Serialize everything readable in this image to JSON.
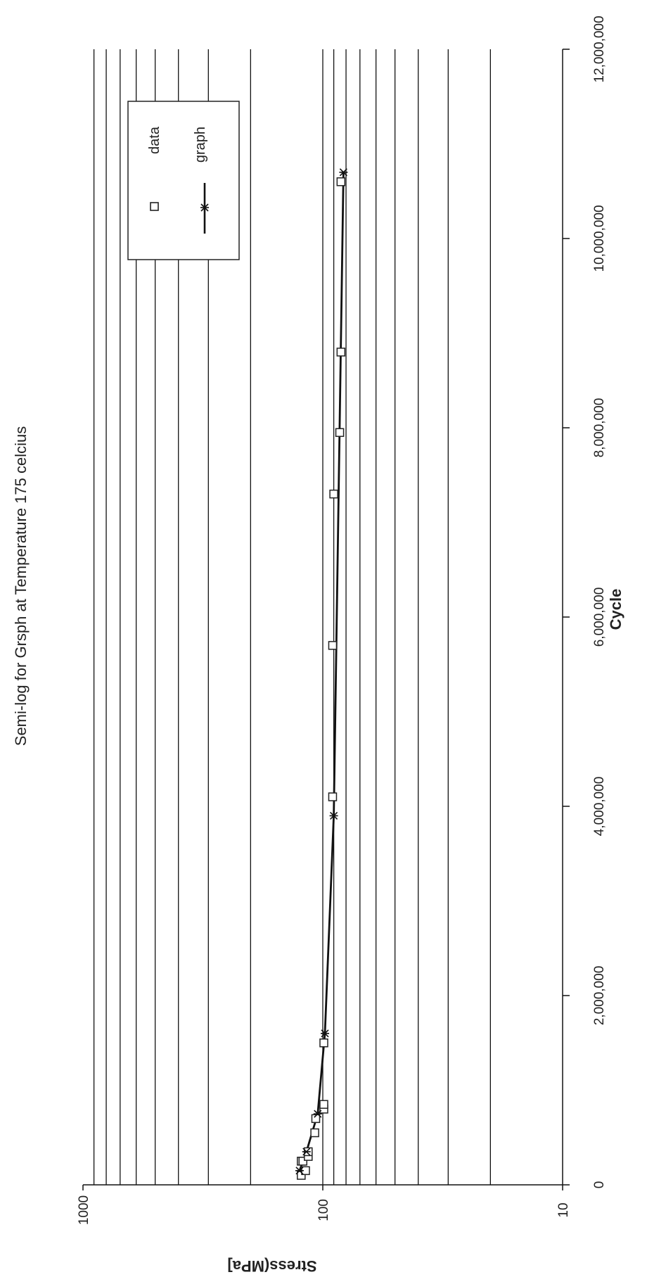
{
  "chart_data": {
    "type": "scatter",
    "title": "Semi-log for Grsph at Temperature 175 celcius",
    "xlabel": "Cycle",
    "ylabel": "Stress(MPa]",
    "xlim": [
      0,
      12000000
    ],
    "ylim": [
      10,
      1000
    ],
    "yscale": "log",
    "grid": true,
    "orientation": "rotated-90",
    "legend_position": "top-right",
    "x_ticks": [
      "0",
      "2,000,000",
      "4,000,000",
      "6,000,000",
      "8,000,000",
      "10,000,000",
      "12,000,000"
    ],
    "y_ticks": [
      "10",
      "100",
      "1000"
    ],
    "series": [
      {
        "name": "data",
        "marker": "square",
        "x": [
          100000,
          150000,
          250000,
          250000,
          300000,
          350000,
          550000,
          700000,
          800000,
          850000,
          1500000,
          4100000,
          5700000,
          7300000,
          7950000,
          8800000,
          10600000
        ],
        "y": [
          123,
          118,
          123,
          121,
          115,
          115,
          108,
          107,
          99,
          99,
          99,
          91,
          91,
          90,
          85,
          84,
          84
        ]
      },
      {
        "name": "graph",
        "marker": "asterisk",
        "line": true,
        "x": [
          150000,
          350000,
          750000,
          1600000,
          3900000,
          10700000
        ],
        "y": [
          125,
          117,
          105,
          98,
          90,
          82
        ]
      }
    ]
  }
}
